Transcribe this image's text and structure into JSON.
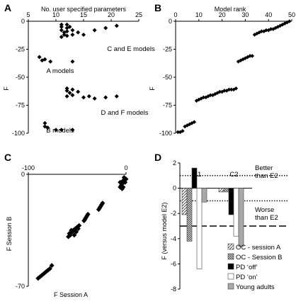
{
  "chart_data": [
    {
      "panel": "A",
      "type": "scatter",
      "xlabel": "No. user  specified parameters",
      "ylabel": "F",
      "xlim": [
        5,
        25
      ],
      "ylim": [
        -100,
        0
      ],
      "xticks": [
        "5",
        "10",
        "15",
        "20",
        "25"
      ],
      "yticks": [
        "-100",
        "-75",
        "-50",
        "-25",
        "0"
      ],
      "annotations": [
        "C and E models",
        "A models",
        "D and F models",
        "B models"
      ],
      "points": [
        [
          11,
          -3
        ],
        [
          11,
          -5
        ],
        [
          11,
          -8
        ],
        [
          11.5,
          -10
        ],
        [
          11.5,
          -12
        ],
        [
          11,
          -14
        ],
        [
          12,
          -3
        ],
        [
          12,
          -6
        ],
        [
          12,
          -9
        ],
        [
          12,
          -13
        ],
        [
          12.5,
          -5
        ],
        [
          13,
          -8
        ],
        [
          13,
          -12
        ],
        [
          14,
          -10
        ],
        [
          15,
          -12
        ],
        [
          17,
          -8
        ],
        [
          19,
          -6
        ],
        [
          21,
          -4
        ],
        [
          7,
          -32
        ],
        [
          8,
          -34
        ],
        [
          7.5,
          -35
        ],
        [
          9,
          -36
        ],
        [
          13,
          -36
        ],
        [
          12,
          -60
        ],
        [
          12,
          -62
        ],
        [
          12.5,
          -64
        ],
        [
          13,
          -61
        ],
        [
          13,
          -66
        ],
        [
          12,
          -67
        ],
        [
          14,
          -63
        ],
        [
          15,
          -68
        ],
        [
          16,
          -67
        ],
        [
          17,
          -69
        ],
        [
          19,
          -68
        ],
        [
          21,
          -67
        ],
        [
          8,
          -91
        ],
        [
          8,
          -94
        ],
        [
          8.5,
          -95
        ],
        [
          10,
          -97
        ],
        [
          11,
          -97
        ],
        [
          13,
          -97
        ]
      ]
    },
    {
      "panel": "B",
      "type": "scatter",
      "xlabel": "Model rank",
      "ylabel": "F",
      "xlim": [
        0,
        50
      ],
      "ylim": [
        -100,
        0
      ],
      "xticks": [
        "0",
        "10",
        "20",
        "30",
        "40",
        "50"
      ],
      "yticks": [
        "-100",
        "-75",
        "-50",
        "-25",
        "0"
      ],
      "values": [
        -99,
        -99,
        -98,
        -94,
        -93,
        -92,
        -91,
        -90,
        -71,
        -70,
        -69,
        -68,
        -68,
        -67,
        -66,
        -66,
        -65,
        -64,
        -63,
        -63,
        -62,
        -62,
        -61,
        -61,
        -61,
        -60,
        -36,
        -35,
        -34,
        -33,
        -32,
        -31,
        -31,
        -12,
        -11,
        -10,
        -9,
        -9,
        -8,
        -8,
        -7,
        -7,
        -6,
        -5,
        -4,
        -3,
        -2,
        -1,
        0
      ]
    },
    {
      "panel": "C",
      "type": "scatter",
      "xlabel": "F Session A",
      "ylabel": "F Session B",
      "xlim": [
        -100,
        0
      ],
      "ylim": [
        -70,
        0
      ],
      "xticks": [
        "-100",
        "0"
      ],
      "yticks": [
        "-70",
        "0"
      ],
      "points": [
        [
          -2,
          -2
        ],
        [
          -3,
          -4
        ],
        [
          -4,
          -6
        ],
        [
          -1,
          -5
        ],
        [
          -5,
          -7
        ],
        [
          -6,
          -8
        ],
        [
          -3,
          -8
        ],
        [
          0,
          -3
        ],
        [
          -6,
          -5
        ],
        [
          -4,
          -9
        ],
        [
          -25,
          -19
        ],
        [
          -26,
          -20
        ],
        [
          -27,
          -21
        ],
        [
          -28,
          -22
        ],
        [
          -24,
          -18
        ],
        [
          -40,
          -26
        ],
        [
          -41,
          -27
        ],
        [
          -42,
          -28
        ],
        [
          -43,
          -29
        ],
        [
          -39,
          -25
        ],
        [
          -48,
          -32
        ],
        [
          -50,
          -33
        ],
        [
          -52,
          -34
        ],
        [
          -54,
          -35
        ],
        [
          -56,
          -35
        ],
        [
          -58,
          -37
        ],
        [
          -55,
          -36
        ],
        [
          -53,
          -38
        ],
        [
          -57,
          -38
        ],
        [
          -59,
          -39
        ],
        [
          -51,
          -36
        ],
        [
          -49,
          -34
        ],
        [
          -76,
          -57
        ],
        [
          -78,
          -59
        ],
        [
          -80,
          -60
        ],
        [
          -82,
          -61
        ],
        [
          -86,
          -63
        ],
        [
          -88,
          -64
        ],
        [
          -90,
          -65
        ],
        [
          -84,
          -62
        ]
      ]
    },
    {
      "panel": "D",
      "type": "bar",
      "ylabel": "F (versus model E2)",
      "ylim": [
        -8,
        2
      ],
      "yticks": [
        "2",
        "0",
        "-2",
        "-4",
        "-6",
        "-8"
      ],
      "categories": [
        "E1",
        "C2"
      ],
      "series": [
        {
          "name": "OC - session A",
          "pattern": "hatch-light",
          "values": [
            -2.1,
            -0.3
          ]
        },
        {
          "name": "OC - Session B",
          "pattern": "hatch-dense",
          "values": [
            -4.2,
            -0.3
          ]
        },
        {
          "name": "PD ‘off’",
          "pattern": "black",
          "values": [
            1.6,
            -2.1
          ]
        },
        {
          "name": "PD ‘on’",
          "pattern": "white",
          "values": [
            -6.4,
            -3.8
          ]
        },
        {
          "name": "Young adults",
          "pattern": "gray",
          "values": [
            -1.1,
            -4.6
          ]
        }
      ],
      "reference_lines": [
        {
          "value": 1,
          "style": "dotted"
        },
        {
          "value": -1,
          "style": "dotted"
        },
        {
          "value": -3,
          "style": "dashed"
        }
      ],
      "annotations": [
        "Better than E2",
        "Worse than E2"
      ]
    }
  ],
  "figure": {
    "panel_labels": [
      "A",
      "B",
      "C",
      "D"
    ],
    "annot_better_1": "Better",
    "annot_better_2": "than E2",
    "annot_worse_1": "Worse",
    "annot_worse_2": "than E2"
  }
}
